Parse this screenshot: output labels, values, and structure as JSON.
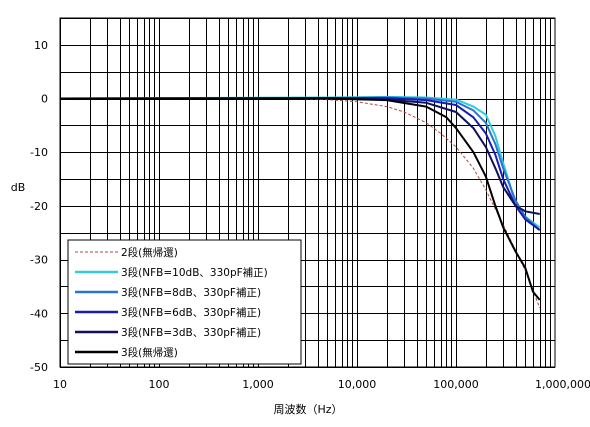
{
  "chart_data": {
    "type": "line",
    "title": "",
    "xlabel": "周波数（Hz）",
    "ylabel": "dB",
    "x_scale": "log",
    "xlim": [
      10,
      1000000
    ],
    "ylim": [
      -50,
      15
    ],
    "x_ticks": [
      10,
      100,
      1000,
      10000,
      100000,
      1000000
    ],
    "x_tick_labels": [
      "10",
      "100",
      "1,000",
      "10,000",
      "100,000",
      "1,000,000"
    ],
    "y_ticks": [
      10,
      0,
      -10,
      -20,
      -30,
      -40,
      -50
    ],
    "y_tick_labels": [
      "10",
      "0",
      "-10",
      "-20",
      "-30",
      "-40",
      "-50"
    ],
    "grid": true,
    "legend_position": "bottom-left",
    "series": [
      {
        "name": "2段(無帰還)",
        "color": "#b04a3c",
        "dash": true,
        "x": [
          10,
          1000,
          5000,
          10000,
          20000,
          30000,
          50000,
          70000,
          100000,
          150000,
          200000,
          300000,
          500000,
          700000
        ],
        "y": [
          0,
          0,
          -0.2,
          -0.6,
          -1.5,
          -2.5,
          -4.5,
          -6.5,
          -9,
          -13,
          -17,
          -23.5,
          -32,
          -39
        ]
      },
      {
        "name": "3段(NFB=10dB、330pF補正)",
        "color": "#33ccdd",
        "dash": false,
        "x": [
          10,
          5000,
          20000,
          50000,
          100000,
          150000,
          200000,
          250000,
          300000,
          350000,
          400000,
          500000,
          700000
        ],
        "y": [
          0,
          0.2,
          0.3,
          0.2,
          -0.2,
          -1.5,
          -3,
          -7,
          -12,
          -16,
          -20,
          -22,
          -24
        ]
      },
      {
        "name": "3段(NFB=8dB、330pF補正)",
        "color": "#2a74d0",
        "dash": false,
        "x": [
          10,
          5000,
          20000,
          50000,
          100000,
          150000,
          200000,
          250000,
          300000,
          400000,
          500000,
          700000
        ],
        "y": [
          0,
          0.1,
          0.2,
          0,
          -0.6,
          -2.2,
          -4.5,
          -8.5,
          -13,
          -19,
          -22,
          -24.5
        ]
      },
      {
        "name": "3段(NFB=6dB、330pF補正)",
        "color": "#1a1ab0",
        "dash": false,
        "x": [
          10,
          5000,
          20000,
          50000,
          100000,
          150000,
          200000,
          250000,
          300000,
          400000,
          500000,
          700000
        ],
        "y": [
          0,
          0.1,
          0.1,
          -0.3,
          -1.2,
          -3.5,
          -6.5,
          -10.5,
          -15,
          -20,
          -22.5,
          -24.5
        ]
      },
      {
        "name": "3段(NFB=3dB、330pF補正)",
        "color": "#101060",
        "dash": false,
        "x": [
          10,
          5000,
          20000,
          50000,
          100000,
          150000,
          200000,
          250000,
          300000,
          400000,
          500000,
          700000
        ],
        "y": [
          0,
          0,
          -0.2,
          -0.8,
          -2.5,
          -5.5,
          -9,
          -13,
          -16.5,
          -20,
          -21,
          -21.5
        ]
      },
      {
        "name": "3段(無帰還)",
        "color": "#000000",
        "dash": false,
        "x": [
          10,
          5000,
          20000,
          50000,
          80000,
          100000,
          150000,
          200000,
          250000,
          300000,
          400000,
          500000,
          600000,
          700000
        ],
        "y": [
          0,
          0,
          -0.3,
          -1.5,
          -3.5,
          -5.5,
          -10,
          -14.5,
          -20,
          -24,
          -28.5,
          -31.5,
          -36,
          -37.5
        ]
      }
    ]
  }
}
